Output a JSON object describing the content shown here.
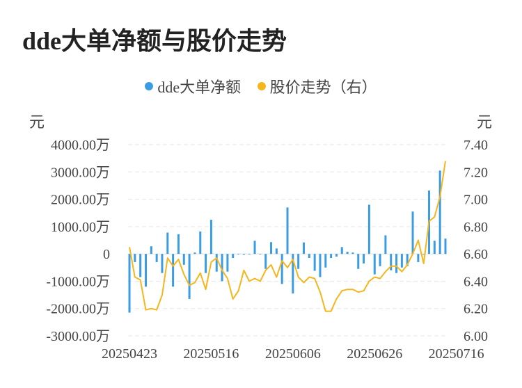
{
  "chart_data": {
    "type": "bar+line",
    "title": "dde大单净额与股价走势",
    "legend": [
      {
        "name": "dde大单净额",
        "color": "#3a9de3"
      },
      {
        "name": "股价走势（右）",
        "color": "#f5b51c"
      }
    ],
    "left_unit": "元",
    "right_unit": "元",
    "left_axis": {
      "min": -3000,
      "max": 4000,
      "tick_labels": [
        "-3000.00万",
        "-2000.00万",
        "-1000.00万",
        "0",
        "1000.00万",
        "2000.00万",
        "3000.00万",
        "4000.00万"
      ],
      "tick_values": [
        -3000,
        -2000,
        -1000,
        0,
        1000,
        2000,
        3000,
        4000
      ]
    },
    "right_axis": {
      "min": 6.0,
      "max": 7.4,
      "tick_labels": [
        "6.00",
        "6.20",
        "6.40",
        "6.60",
        "6.80",
        "7.00",
        "7.20",
        "7.40"
      ],
      "tick_values": [
        6.0,
        6.2,
        6.4,
        6.6,
        6.8,
        7.0,
        7.2,
        7.4
      ]
    },
    "x_tick_labels": [
      "20250423",
      "20250516",
      "20250606",
      "20250626",
      "20250716"
    ],
    "x_tick_indices": [
      0,
      15,
      30,
      45,
      60
    ],
    "bars": [
      -2150,
      -300,
      -850,
      -1200,
      280,
      -300,
      -700,
      780,
      -1200,
      720,
      -400,
      -1650,
      50,
      820,
      -700,
      1250,
      -650,
      -1000,
      -650,
      -150,
      0,
      -30,
      -20,
      480,
      0,
      -550,
      430,
      200,
      -1100,
      1700,
      -1450,
      -550,
      420,
      -150,
      -620,
      -850,
      -500,
      -150,
      -100,
      250,
      80,
      50,
      -550,
      -350,
      1800,
      -750,
      -450,
      680,
      -600,
      -700,
      -500,
      -450,
      1550,
      -300,
      0,
      2320,
      480,
      3050,
      560
    ],
    "prices": [
      6.65,
      6.43,
      6.41,
      6.19,
      6.2,
      6.19,
      6.3,
      6.57,
      6.51,
      6.56,
      6.45,
      6.37,
      6.39,
      6.46,
      6.34,
      6.54,
      6.57,
      6.48,
      6.42,
      6.27,
      6.33,
      6.48,
      6.4,
      6.42,
      6.4,
      6.48,
      6.52,
      6.43,
      6.55,
      6.5,
      6.56,
      6.43,
      6.39,
      6.43,
      6.42,
      6.32,
      6.18,
      6.18,
      6.27,
      6.33,
      6.34,
      6.34,
      6.32,
      6.33,
      6.4,
      6.43,
      6.42,
      6.47,
      6.51,
      6.51,
      6.47,
      6.52,
      6.6,
      6.7,
      6.53,
      6.84,
      6.87,
      7.02,
      7.28
    ]
  }
}
